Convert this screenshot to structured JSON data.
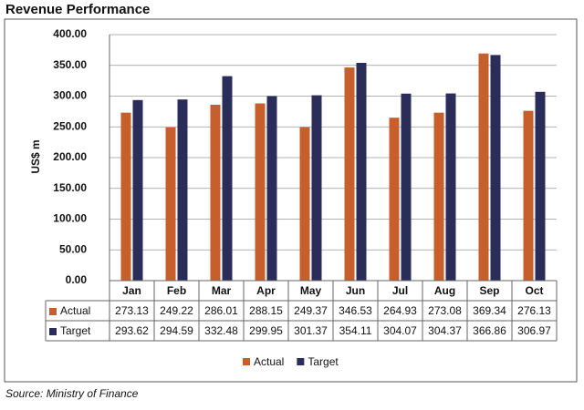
{
  "chart_data": {
    "type": "bar",
    "title": "Revenue Performance",
    "y_label": "US$ m",
    "source": "Source: Ministry of Finance",
    "categories": [
      "Jan",
      "Feb",
      "Mar",
      "Apr",
      "May",
      "Jun",
      "Jul",
      "Aug",
      "Sep",
      "Oct"
    ],
    "series": [
      {
        "name": "Actual",
        "color": "#c65f2b",
        "values": [
          273.13,
          249.22,
          286.01,
          288.15,
          249.37,
          346.53,
          264.93,
          273.08,
          369.34,
          276.13
        ]
      },
      {
        "name": "Target",
        "color": "#2a2c5a",
        "values": [
          293.62,
          294.59,
          332.48,
          299.95,
          301.37,
          354.11,
          304.07,
          304.37,
          366.86,
          306.97
        ]
      }
    ],
    "ylim": [
      0,
      400
    ],
    "yticks": [
      {
        "value": 0,
        "label": "0.00"
      },
      {
        "value": 50,
        "label": "50.00"
      },
      {
        "value": 100,
        "label": "100.00"
      },
      {
        "value": 150,
        "label": "150.00"
      },
      {
        "value": 200,
        "label": "200.00"
      },
      {
        "value": 250,
        "label": "250.00"
      },
      {
        "value": 300,
        "label": "300.00"
      },
      {
        "value": 350,
        "label": "350.00"
      },
      {
        "value": 400,
        "label": "400.00"
      }
    ],
    "grid": true,
    "legend": "bottom",
    "data_table": true
  }
}
